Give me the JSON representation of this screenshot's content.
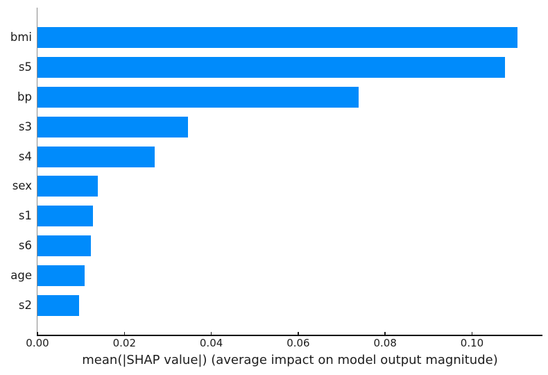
{
  "figure": {
    "background": "#ffffff"
  },
  "chart_data": {
    "type": "bar",
    "orientation": "horizontal",
    "title": "",
    "xlabel": "mean(|SHAP value|) (average impact on model output magnitude)",
    "ylabel": "",
    "categories": [
      "bmi",
      "s5",
      "bp",
      "s3",
      "s4",
      "sex",
      "s1",
      "s6",
      "age",
      "s2"
    ],
    "values": [
      0.1104,
      0.1076,
      0.0739,
      0.0347,
      0.027,
      0.0139,
      0.0128,
      0.0123,
      0.0109,
      0.0096
    ],
    "xlim": [
      0,
      0.1162
    ],
    "xticks": [
      0,
      0.02,
      0.04,
      0.06,
      0.08,
      0.1
    ],
    "xtick_labels": [
      "0.00",
      "0.02",
      "0.04",
      "0.06",
      "0.08",
      "0.10"
    ],
    "grid": false,
    "legend": null,
    "bar_color": "#008bfb",
    "text_color": "#1c1c1c",
    "left_spine_color": "#8a8a8a",
    "bottom_spine_color": "#000000",
    "bar_height_fraction": 0.7
  }
}
